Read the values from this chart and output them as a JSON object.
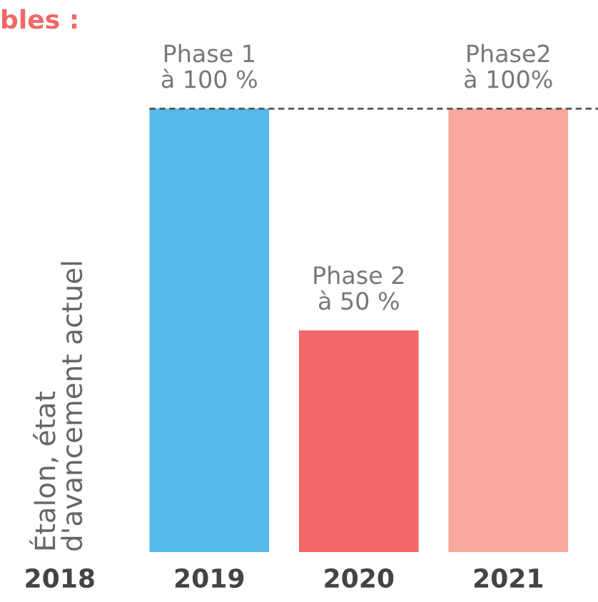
{
  "chart_data": {
    "type": "bar",
    "title": "bles :",
    "categories": [
      "2018",
      "2019",
      "2020",
      "2021"
    ],
    "values": [
      null,
      100,
      50,
      100
    ],
    "colors": [
      "#56b9ea",
      "#56b9ea",
      "#f26767",
      "#f8a89e"
    ],
    "value_labels": [
      null,
      "Phase 1\nà 100 %",
      "Phase 2\nà 50 %",
      "Phase2\nà 100%"
    ],
    "ref_lines": [
      {
        "axis": "y",
        "value": 100,
        "color": "#555555",
        "line_style": "dashed"
      }
    ],
    "annotations": [
      "Étalon, état\nd'avancement actuel"
    ],
    "grid": false,
    "legend": false
  }
}
